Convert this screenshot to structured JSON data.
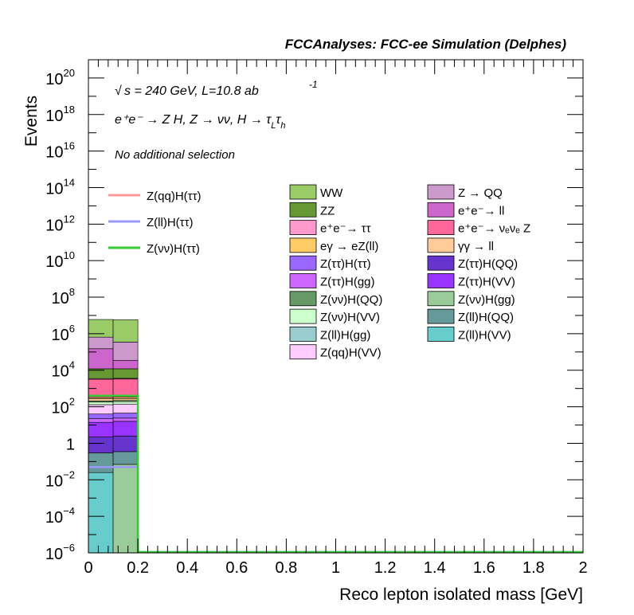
{
  "header": {
    "title": "FCCAnalyses: FCC-ee Simulation (Delphes)",
    "line1_pre": "√",
    "line1": "s = 240 GeV, L=10.8 ab",
    "line1_sup": "-1",
    "line2": "e⁺e⁻ → Z H, Z → νν, H → τ",
    "line2_sub1": "L",
    "line2_mid": "τ",
    "line2_sub2": "h",
    "line3": "No additional selection"
  },
  "chart_data": {
    "type": "histogram",
    "xlabel": "Reco lepton isolated mass [GeV]",
    "ylabel": "Events",
    "xlim": [
      0,
      2
    ],
    "ylim": [
      1e-06,
      1e+21
    ],
    "yscale": "log",
    "grid": false,
    "legend_position": "top-right",
    "x_ticks": [
      "0",
      "0.2",
      "0.4",
      "0.6",
      "0.8",
      "1",
      "1.2",
      "1.4",
      "1.6",
      "1.8",
      "2"
    ],
    "y_ticks": [
      {
        "base": "10",
        "exp": "−6",
        "value": 1e-06
      },
      {
        "base": "10",
        "exp": "−4",
        "value": 0.0001
      },
      {
        "base": "10",
        "exp": "−2",
        "value": 0.01
      },
      {
        "base": "1",
        "exp": "",
        "value": 1
      },
      {
        "base": "10",
        "exp": "2",
        "value": 100.0
      },
      {
        "base": "10",
        "exp": "4",
        "value": 10000.0
      },
      {
        "base": "10",
        "exp": "6",
        "value": 1000000.0
      },
      {
        "base": "10",
        "exp": "8",
        "value": 100000000.0
      },
      {
        "base": "10",
        "exp": "10",
        "value": 10000000000.0
      },
      {
        "base": "10",
        "exp": "12",
        "value": 1000000000000.0
      },
      {
        "base": "10",
        "exp": "14",
        "value": 100000000000000.0
      },
      {
        "base": "10",
        "exp": "16",
        "value": 1e+16
      },
      {
        "base": "10",
        "exp": "18",
        "value": 1e+18
      },
      {
        "base": "10",
        "exp": "20",
        "value": 1e+20
      }
    ],
    "bins": [
      [
        0,
        0.1
      ],
      [
        0.1,
        0.2
      ]
    ],
    "stack": [
      {
        "name": "Z(ll)H(gg)",
        "color": "#99cccc",
        "cumulative": [
          1e-06,
          1e-06
        ]
      },
      {
        "name": "Z(νν)H(gg)",
        "color": "#99cc99",
        "cumulative": [
          1e-06,
          0.07
        ]
      },
      {
        "name": "Z(ll)H(VV)",
        "color": "#66cccc",
        "cumulative": [
          0.025,
          0.07
        ]
      },
      {
        "name": "Z(ll)H(QQ)",
        "color": "#669999",
        "cumulative": [
          0.3,
          0.35
        ]
      },
      {
        "name": "Z(ττ)H(QQ)",
        "color": "#6633cc",
        "cumulative": [
          2.2,
          2.5
        ]
      },
      {
        "name": "Z(ττ)H(VV)",
        "color": "#9933ff",
        "cumulative": [
          14,
          16
        ]
      },
      {
        "name": "Z(ττ)H(gg)",
        "color": "#cc66ff",
        "cumulative": [
          22,
          24
        ]
      },
      {
        "name": "Z(ττ)H(ττ)",
        "color": "#9966ff",
        "cumulative": [
          40,
          45
        ]
      },
      {
        "name": "Z(qq)H(VV)",
        "color": "#ffccff",
        "cumulative": [
          130,
          140
        ]
      },
      {
        "name": "Z(νν)H(VV)",
        "color": "#ccffcc",
        "cumulative": [
          180,
          190
        ]
      },
      {
        "name": "Z(νν)H(QQ)",
        "color": "#669966",
        "cumulative": [
          210,
          220
        ]
      },
      {
        "name": "γγ → ll",
        "color": "#ffcc99",
        "cumulative": [
          270,
          280
        ]
      },
      {
        "name": "eγ → eZ(ll)",
        "color": "#ffcc66",
        "cumulative": [
          320,
          330
        ]
      },
      {
        "name": "e⁺e⁻→ νₑνₑ Z",
        "color": "#ff6699",
        "cumulative": [
          3200,
          3300
        ]
      },
      {
        "name": "e⁺e⁻→ ττ",
        "color": "#ff99cc",
        "cumulative": [
          3500,
          3600
        ]
      },
      {
        "name": "ZZ",
        "color": "#669933",
        "cumulative": [
          12000,
          12000
        ]
      },
      {
        "name": "e⁺e⁻→ ll",
        "color": "#cc66cc",
        "cumulative": [
          150000,
          35000
        ]
      },
      {
        "name": "Z → QQ",
        "color": "#cc99cc",
        "cumulative": [
          650000,
          350000
        ]
      },
      {
        "name": "WW",
        "color": "#99cc66",
        "cumulative": [
          6000000,
          5800000
        ]
      }
    ],
    "signals": [
      {
        "name": "Z(qq)H(ττ)",
        "color": "#ff9999",
        "values": [
          0.05,
          0.05
        ]
      },
      {
        "name": "Z(ll)H(ττ)",
        "color": "#9999ff",
        "values": [
          0.05,
          0.05
        ]
      },
      {
        "name": "Z(νν)H(ττ)",
        "color": "#33cc33",
        "values": [
          400,
          400
        ]
      }
    ],
    "legend_col1": [
      "WW",
      "ZZ",
      "e⁺e⁻→ ττ",
      "eγ → eZ(ll)",
      "Z(ττ)H(ττ)",
      "Z(ττ)H(gg)",
      "Z(νν)H(QQ)",
      "Z(νν)H(VV)",
      "Z(ll)H(gg)",
      "Z(qq)H(VV)"
    ],
    "legend_col2": [
      "Z → QQ",
      "e⁺e⁻→ ll",
      "e⁺e⁻→ νₑνₑ Z",
      "γγ → ll",
      "Z(ττ)H(QQ)",
      "Z(ττ)H(VV)",
      "Z(νν)H(gg)",
      "Z(ll)H(QQ)",
      "Z(ll)H(VV)"
    ]
  }
}
